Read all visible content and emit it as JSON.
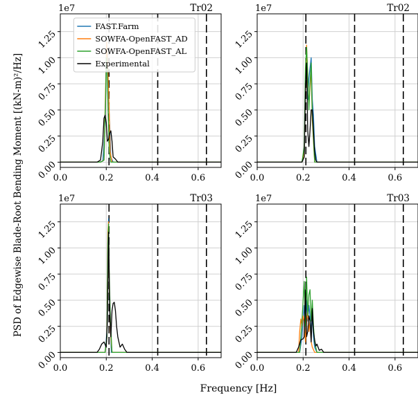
{
  "figure": {
    "ylabel": "PSD of Edgewise Blade-Root Bending Moment [(kN-m)²/Hz]",
    "xlabel": "Frequency [Hz]"
  },
  "colors": {
    "FAST.Farm": "#1f77b4",
    "SOWFA-OpenFAST_AD": "#ff7f0e",
    "SOWFA-OpenFAST_AL": "#2ca02c",
    "Experimental": "#000000",
    "grid": "#d0d0d0"
  },
  "chart_data": [
    {
      "type": "line",
      "panel": "top-left",
      "title": "Tr02",
      "xlim": [
        0.0,
        0.7
      ],
      "ylim": [
        -0.05,
        1.42
      ],
      "y_multiplier": "1e7",
      "x_ticks": [
        "0.0",
        "0.2",
        "0.4",
        "0.6"
      ],
      "y_ticks": [
        "0.00",
        "0.25",
        "0.50",
        "0.75",
        "1.00",
        "1.25"
      ],
      "grid": true,
      "legend_position": "upper-left",
      "legend": [
        "FAST.Farm",
        "SOWFA-OpenFAST_AD",
        "SOWFA-OpenFAST_AL",
        "Experimental"
      ],
      "vlines": [
        0.212,
        0.424,
        0.636
      ],
      "series": [
        {
          "name": "FAST.Farm",
          "x": [
            0,
            0.17,
            0.185,
            0.195,
            0.2,
            0.205,
            0.21,
            0.215,
            0.22,
            0.23,
            0.7
          ],
          "y": [
            0,
            0,
            0.01,
            0.35,
            0.9,
            1.1,
            0.6,
            0.35,
            0.05,
            0,
            0
          ]
        },
        {
          "name": "SOWFA-OpenFAST_AD",
          "x": [
            0,
            0.175,
            0.19,
            0.197,
            0.202,
            0.207,
            0.212,
            0.217,
            0.225,
            0.7
          ],
          "y": [
            0,
            0,
            0.02,
            0.7,
            1.15,
            0.9,
            0.55,
            0.1,
            0,
            0
          ]
        },
        {
          "name": "SOWFA-OpenFAST_AL",
          "x": [
            0,
            0.175,
            0.19,
            0.197,
            0.2,
            0.204,
            0.208,
            0.213,
            0.22,
            0.7
          ],
          "y": [
            0,
            0,
            0.02,
            0.6,
            1.0,
            0.9,
            0.5,
            0.1,
            0,
            0
          ]
        },
        {
          "name": "Experimental",
          "x": [
            0,
            0.16,
            0.175,
            0.185,
            0.19,
            0.195,
            0.2,
            0.205,
            0.21,
            0.215,
            0.22,
            0.225,
            0.23,
            0.24,
            0.25,
            0.7
          ],
          "y": [
            0,
            0,
            0.02,
            0.2,
            0.42,
            0.45,
            0.38,
            0.2,
            0.22,
            0.28,
            0.3,
            0.2,
            0.05,
            0.03,
            0,
            0
          ]
        }
      ]
    },
    {
      "type": "line",
      "panel": "top-right",
      "title": "Tr02",
      "xlim": [
        0.0,
        0.7
      ],
      "ylim": [
        -0.05,
        1.42
      ],
      "y_multiplier": "1e7",
      "x_ticks": [
        "0.0",
        "0.2",
        "0.4",
        "0.6"
      ],
      "y_ticks": [
        "0.00",
        "0.25",
        "0.50",
        "0.75",
        "1.00",
        "1.25"
      ],
      "grid": true,
      "vlines": [
        0.212,
        0.424,
        0.636
      ],
      "series": [
        {
          "name": "FAST.Farm",
          "x": [
            0,
            0.195,
            0.205,
            0.21,
            0.215,
            0.22,
            0.225,
            0.23,
            0.235,
            0.24,
            0.245,
            0.25,
            0.26,
            0.7
          ],
          "y": [
            0,
            0,
            0.1,
            0.75,
            0.9,
            0.6,
            0.8,
            0.9,
            1.0,
            0.6,
            0.45,
            0.15,
            0,
            0
          ]
        },
        {
          "name": "SOWFA-OpenFAST_AD",
          "x": [
            0,
            0.195,
            0.205,
            0.21,
            0.215,
            0.22,
            0.225,
            0.23,
            0.235,
            0.24,
            0.25,
            0.7
          ],
          "y": [
            0,
            0,
            0.1,
            0.7,
            1.12,
            0.8,
            0.55,
            0.7,
            0.9,
            0.4,
            0,
            0
          ]
        },
        {
          "name": "SOWFA-OpenFAST_AL",
          "x": [
            0,
            0.195,
            0.205,
            0.21,
            0.215,
            0.22,
            0.225,
            0.23,
            0.235,
            0.24,
            0.25,
            0.7
          ],
          "y": [
            0,
            0,
            0.15,
            0.9,
            1.1,
            0.85,
            0.5,
            0.75,
            0.95,
            0.45,
            0,
            0
          ]
        },
        {
          "name": "Experimental",
          "x": [
            0,
            0.195,
            0.205,
            0.21,
            0.215,
            0.22,
            0.225,
            0.23,
            0.235,
            0.24,
            0.245,
            0.25,
            0.255,
            0.26,
            0.7
          ],
          "y": [
            0,
            0,
            0.05,
            0.7,
            0.95,
            0.3,
            0.15,
            0.3,
            0.5,
            0.5,
            0.3,
            0.1,
            0.02,
            0,
            0
          ]
        }
      ]
    },
    {
      "type": "line",
      "panel": "bottom-left",
      "title": "Tr03",
      "xlim": [
        0.0,
        0.7
      ],
      "ylim": [
        -0.05,
        1.42
      ],
      "y_multiplier": "1e7",
      "x_ticks": [
        "0.0",
        "0.2",
        "0.4",
        "0.6"
      ],
      "y_ticks": [
        "0.00",
        "0.25",
        "0.50",
        "0.75",
        "1.00",
        "1.25"
      ],
      "grid": true,
      "vlines": [
        0.212,
        0.424,
        0.636
      ],
      "series": [
        {
          "name": "FAST.Farm",
          "x": [
            0,
            0.195,
            0.203,
            0.207,
            0.21,
            0.213,
            0.217,
            0.222,
            0.7
          ],
          "y": [
            0,
            0,
            0.2,
            1.0,
            1.28,
            0.6,
            0.3,
            0,
            0
          ]
        },
        {
          "name": "SOWFA-OpenFAST_AD",
          "x": [
            0,
            0.195,
            0.203,
            0.207,
            0.21,
            0.213,
            0.218,
            0.225,
            0.7
          ],
          "y": [
            0,
            0,
            0.15,
            1.15,
            1.25,
            0.65,
            0.2,
            0,
            0
          ]
        },
        {
          "name": "SOWFA-OpenFAST_AL",
          "x": [
            0,
            0.195,
            0.203,
            0.207,
            0.21,
            0.213,
            0.218,
            0.225,
            0.7
          ],
          "y": [
            0,
            0,
            0.15,
            1.05,
            1.23,
            0.75,
            0.3,
            0,
            0
          ]
        },
        {
          "name": "Experimental",
          "x": [
            0,
            0.16,
            0.17,
            0.18,
            0.19,
            0.2,
            0.205,
            0.21,
            0.215,
            0.22,
            0.225,
            0.23,
            0.235,
            0.24,
            0.245,
            0.25,
            0.26,
            0.27,
            0.28,
            0.29,
            0.7
          ],
          "y": [
            0,
            0,
            0.03,
            0.08,
            0.1,
            0.05,
            0.3,
            1.15,
            0.4,
            0.15,
            0.4,
            0.47,
            0.48,
            0.4,
            0.25,
            0.15,
            0.05,
            0.08,
            0.03,
            0,
            0
          ]
        }
      ]
    },
    {
      "type": "line",
      "panel": "bottom-right",
      "title": "Tr03",
      "xlim": [
        0.0,
        0.7
      ],
      "ylim": [
        -0.05,
        1.42
      ],
      "y_multiplier": "1e7",
      "x_ticks": [
        "0.0",
        "0.2",
        "0.4",
        "0.6"
      ],
      "y_ticks": [
        "0.00",
        "0.25",
        "0.50",
        "0.75",
        "1.00",
        "1.25"
      ],
      "grid": true,
      "vlines": [
        0.212,
        0.424,
        0.636
      ],
      "series": [
        {
          "name": "FAST.Farm",
          "x": [
            0,
            0.185,
            0.195,
            0.2,
            0.205,
            0.21,
            0.215,
            0.22,
            0.225,
            0.23,
            0.235,
            0.24,
            0.245,
            0.25,
            0.26,
            0.7
          ],
          "y": [
            0,
            0,
            0.15,
            0.3,
            0.45,
            0.25,
            0.5,
            0.3,
            0.45,
            0.35,
            0.2,
            0.35,
            0.15,
            0.05,
            0,
            0
          ]
        },
        {
          "name": "SOWFA-OpenFAST_AD",
          "x": [
            0,
            0.18,
            0.185,
            0.19,
            0.195,
            0.2,
            0.205,
            0.21,
            0.215,
            0.22,
            0.225,
            0.23,
            0.235,
            0.24,
            0.25,
            0.7
          ],
          "y": [
            0,
            0,
            0.2,
            0.32,
            0.25,
            0.35,
            0.3,
            0.1,
            0.3,
            0.4,
            0.2,
            0.3,
            0.1,
            0.05,
            0,
            0
          ]
        },
        {
          "name": "SOWFA-OpenFAST_AL",
          "x": [
            0,
            0.185,
            0.195,
            0.2,
            0.205,
            0.21,
            0.215,
            0.22,
            0.225,
            0.23,
            0.235,
            0.24,
            0.245,
            0.25,
            0.26,
            0.7
          ],
          "y": [
            0,
            0,
            0.3,
            0.5,
            0.68,
            0.25,
            0.72,
            0.35,
            0.55,
            0.6,
            0.3,
            0.5,
            0.25,
            0.1,
            0,
            0
          ]
        },
        {
          "name": "Experimental",
          "x": [
            0,
            0.17,
            0.18,
            0.19,
            0.2,
            0.205,
            0.21,
            0.215,
            0.22,
            0.225,
            0.23,
            0.235,
            0.24,
            0.245,
            0.25,
            0.255,
            0.26,
            0.27,
            0.28,
            0.29,
            0.7
          ],
          "y": [
            0,
            0,
            0.05,
            0.12,
            0.13,
            0.15,
            0.6,
            0.15,
            0.2,
            0.35,
            0.3,
            0.1,
            0.42,
            0.2,
            0.12,
            0.06,
            0.08,
            0.02,
            0.03,
            0,
            0
          ]
        }
      ]
    }
  ]
}
